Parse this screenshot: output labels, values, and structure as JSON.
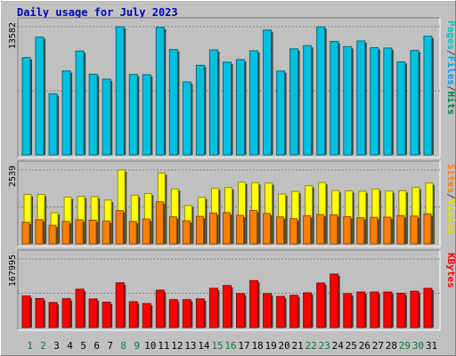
{
  "title": "Daily usage for July 2023",
  "chart_data": {
    "type": "bar",
    "x": [
      "1",
      "2",
      "3",
      "4",
      "5",
      "6",
      "7",
      "8",
      "9",
      "10",
      "11",
      "12",
      "13",
      "14",
      "15",
      "16",
      "17",
      "18",
      "19",
      "20",
      "21",
      "22",
      "23",
      "24",
      "25",
      "26",
      "27",
      "28",
      "29",
      "30",
      "31"
    ],
    "weekend_days": [
      "1",
      "2",
      "8",
      "9",
      "15",
      "16",
      "22",
      "23",
      "29",
      "30"
    ],
    "panels": [
      {
        "id": "hits",
        "ymax_label": "13582",
        "ymax": 13582,
        "axis_words": [
          "Pages",
          "/",
          "Files",
          "/",
          "Hits"
        ],
        "axis_colors": [
          "#00c8c8",
          "#404040",
          "#00a0ff",
          "#404040",
          "#008040"
        ],
        "series": [
          {
            "name": "Hits",
            "color": "#00c0e0",
            "values": [
              10313,
              12474,
              6470,
              8889,
              11001,
              8546,
              8024,
              13571,
              8519,
              8491,
              13516,
              11160,
              7731,
              9494,
              11126,
              9825,
              10100,
              11035,
              13230,
              8888,
              11236,
              11576,
              13562,
              12024,
              11473,
              12074,
              11357,
              11324,
              9859,
              11066,
              12571
            ]
          }
        ]
      },
      {
        "id": "visits",
        "ymax_label": "2539",
        "ymax": 2539,
        "axis_words": [
          "Sites",
          "/",
          "Visits"
        ],
        "axis_colors": [
          "#ff8000",
          "#404040",
          "#e0e000"
        ],
        "series": [
          {
            "name": "Visits",
            "color": "#ffff00",
            "values": [
              1699,
              1700,
              1072,
              1608,
              1633,
              1624,
              1503,
              2539,
              1674,
              1730,
              2436,
              1889,
              1318,
              1601,
              1913,
              1935,
              2116,
              2101,
              2090,
              1715,
              1800,
              1998,
              2107,
              1831,
              1821,
              1809,
              1885,
              1815,
              1826,
              1939,
              2091
            ]
          },
          {
            "name": "Sites",
            "color": "#ff8000",
            "values": [
              740,
              832,
              638,
              769,
              826,
              816,
              787,
              1144,
              768,
              853,
              1446,
              929,
              792,
              945,
              1058,
              1071,
              980,
              1147,
              1043,
              926,
              866,
              967,
              1007,
              998,
              937,
              896,
              911,
              918,
              970,
              957,
              1030
            ]
          }
        ]
      },
      {
        "id": "kbytes",
        "ymax_label": "167995",
        "ymax": 167995,
        "axis_words": [
          "KBytes"
        ],
        "axis_colors": [
          "#ff0000"
        ],
        "series": [
          {
            "name": "KBytes",
            "color": "#ff0000",
            "values": [
              77286,
              71000,
              61200,
              70500,
              93900,
              70000,
              61900,
              109500,
              63200,
              58700,
              91500,
              68300,
              68300,
              70000,
              96000,
              103000,
              83000,
              115000,
              83000,
              76000,
              79000,
              85000,
              109000,
              131000,
              83000,
              87000,
              87000,
              87000,
              84000,
              89000,
              96000
            ]
          }
        ]
      }
    ]
  }
}
